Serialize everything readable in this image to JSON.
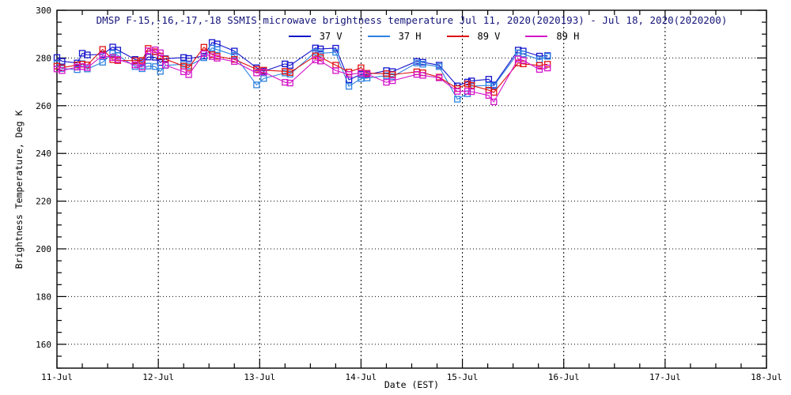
{
  "colors": {
    "background": "#ffffff",
    "axis": "#000000",
    "title_text": "#15157a",
    "tick_text": "#000000"
  },
  "chart_data": {
    "type": "line",
    "title": "DMSP F-15,-16,-17,-18 SSMIS microwave brightness temperature Jul 11, 2020(2020193) - Jul 18, 2020(2020200)",
    "xlabel": "Date (EST)",
    "ylabel": "Brightness Temperature, Deg K",
    "xlim": [
      0,
      7
    ],
    "ylim": [
      150,
      300
    ],
    "x_tick_labels": [
      "11-Jul",
      "12-Jul",
      "13-Jul",
      "14-Jul",
      "15-Jul",
      "16-Jul",
      "17-Jul",
      "18-Jul"
    ],
    "x_tick_positions": [
      0,
      1,
      2,
      3,
      4,
      5,
      6,
      7
    ],
    "x_minor_step": 0.25,
    "y_major_ticks": [
      160,
      180,
      200,
      220,
      240,
      260,
      280,
      300
    ],
    "y_minor_step": 5,
    "grid": "dotted lines at major ticks",
    "legend_position": "top center",
    "marker": "open-square",
    "x_unit_days_from": "11-Jul 00:00",
    "x": [
      0.0,
      0.05,
      0.2,
      0.25,
      0.3,
      0.45,
      0.55,
      0.6,
      0.77,
      0.84,
      0.9,
      0.97,
      1.02,
      1.07,
      1.25,
      1.3,
      1.45,
      1.53,
      1.58,
      1.75,
      1.97,
      2.04,
      2.25,
      2.3,
      2.55,
      2.6,
      2.75,
      2.88,
      3.0,
      3.06,
      3.25,
      3.31,
      3.55,
      3.61,
      3.77,
      3.95,
      4.05,
      4.09,
      4.26,
      4.31,
      4.55,
      4.6,
      4.76,
      4.84
    ],
    "series": [
      {
        "name": "37 V",
        "color": "#1414cc",
        "values": [
          280.2,
          278.6,
          277.9,
          282.0,
          281.3,
          281.5,
          284.6,
          283.3,
          279.4,
          278.3,
          280.4,
          280.3,
          278.1,
          279.7,
          280.2,
          279.8,
          280.8,
          286.5,
          285.9,
          282.9,
          275.9,
          274.4,
          277.5,
          276.9,
          284.2,
          283.8,
          284.1,
          270.9,
          273.1,
          273.0,
          274.7,
          274.3,
          278.6,
          278.2,
          277.0,
          268.3,
          269.9,
          270.4,
          271.1,
          268.7,
          283.3,
          282.9,
          280.8,
          281.0
        ]
      },
      {
        "name": "37 H",
        "color": "#2d82e0",
        "values": [
          277.6,
          275.6,
          275.1,
          277.6,
          275.4,
          278.2,
          282.0,
          281.1,
          276.4,
          275.5,
          276.6,
          276.4,
          274.4,
          276.9,
          277.4,
          276.7,
          280.1,
          284.2,
          283.5,
          281.2,
          268.7,
          271.4,
          273.7,
          273.2,
          282.5,
          282.0,
          282.4,
          268.1,
          271.4,
          271.6,
          272.6,
          272.2,
          277.9,
          277.4,
          276.4,
          262.7,
          265.0,
          268.2,
          268.5,
          268.3,
          282.2,
          281.7,
          279.3,
          280.7
        ]
      },
      {
        "name": "89 V",
        "color": "#e01010",
        "values": [
          276.6,
          275.9,
          277.1,
          277.4,
          277.1,
          283.6,
          279.3,
          278.9,
          278.9,
          279.0,
          284.0,
          282.6,
          280.8,
          279.5,
          276.6,
          276.0,
          284.5,
          281.4,
          280.7,
          279.4,
          275.3,
          274.9,
          274.4,
          273.9,
          280.9,
          280.3,
          277.0,
          274.1,
          275.9,
          273.6,
          273.4,
          273.0,
          274.2,
          273.8,
          272.0,
          267.2,
          269.1,
          268.5,
          266.5,
          265.6,
          277.9,
          277.5,
          276.9,
          277.4
        ]
      },
      {
        "name": "89 H",
        "color": "#d414c8",
        "values": [
          275.4,
          274.7,
          276.2,
          276.4,
          276.0,
          281.0,
          280.2,
          279.4,
          277.1,
          276.2,
          283.0,
          283.4,
          282.2,
          277.0,
          274.2,
          273.0,
          281.8,
          280.6,
          279.9,
          278.5,
          273.7,
          274.1,
          269.8,
          269.5,
          279.2,
          278.7,
          274.7,
          273.1,
          273.7,
          273.3,
          269.8,
          270.5,
          273.1,
          272.7,
          271.7,
          266.0,
          266.1,
          265.9,
          264.3,
          261.6,
          279.6,
          279.0,
          275.2,
          275.8
        ]
      }
    ]
  }
}
